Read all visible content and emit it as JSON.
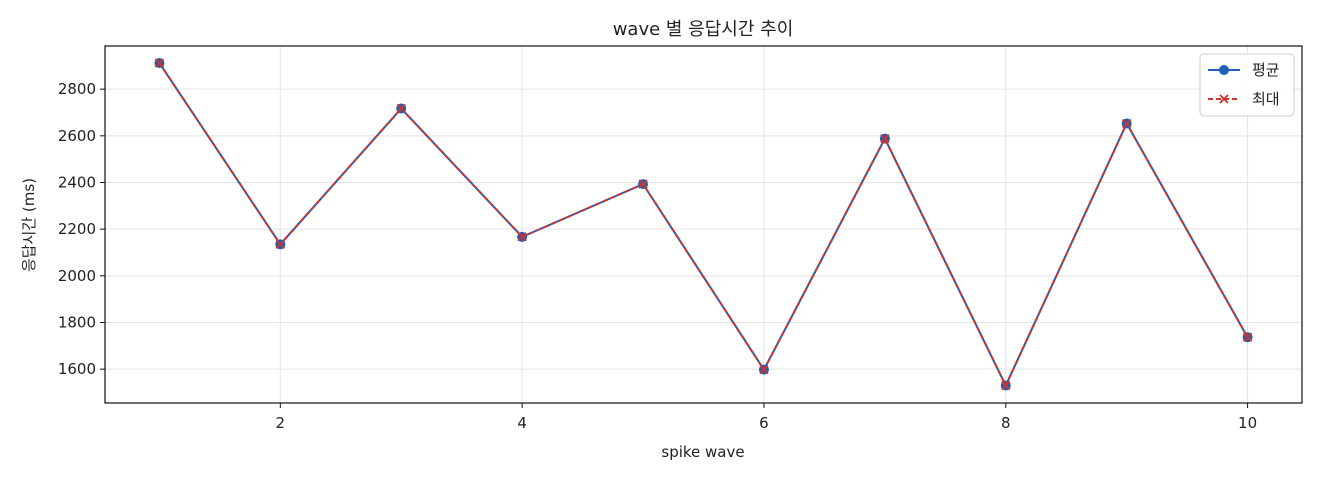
{
  "chart_data": {
    "type": "line",
    "title": "wave 별 응답시간 추이",
    "xlabel": "spike wave",
    "ylabel": "응답시간 (ms)",
    "x": [
      1,
      2,
      3,
      4,
      5,
      6,
      7,
      8,
      9,
      10
    ],
    "xlim": [
      0.55,
      10.45
    ],
    "ylim": [
      1455,
      2985
    ],
    "xticks": [
      2,
      4,
      6,
      8,
      10
    ],
    "yticks": [
      1600,
      1800,
      2000,
      2200,
      2400,
      2600,
      2800
    ],
    "grid": true,
    "legend_position": "top-right",
    "series": [
      {
        "name": "평균",
        "values": [
          2912,
          2135,
          2717,
          2167,
          2393,
          1598,
          2588,
          1530,
          2653,
          1737
        ],
        "color": "#1f5fb4",
        "line_style": "solid",
        "marker": "circle"
      },
      {
        "name": "최대",
        "values": [
          2912,
          2135,
          2717,
          2167,
          2393,
          1598,
          2588,
          1530,
          2653,
          1737
        ],
        "color": "#d0332e",
        "line_style": "dashed",
        "marker": "x"
      }
    ]
  }
}
